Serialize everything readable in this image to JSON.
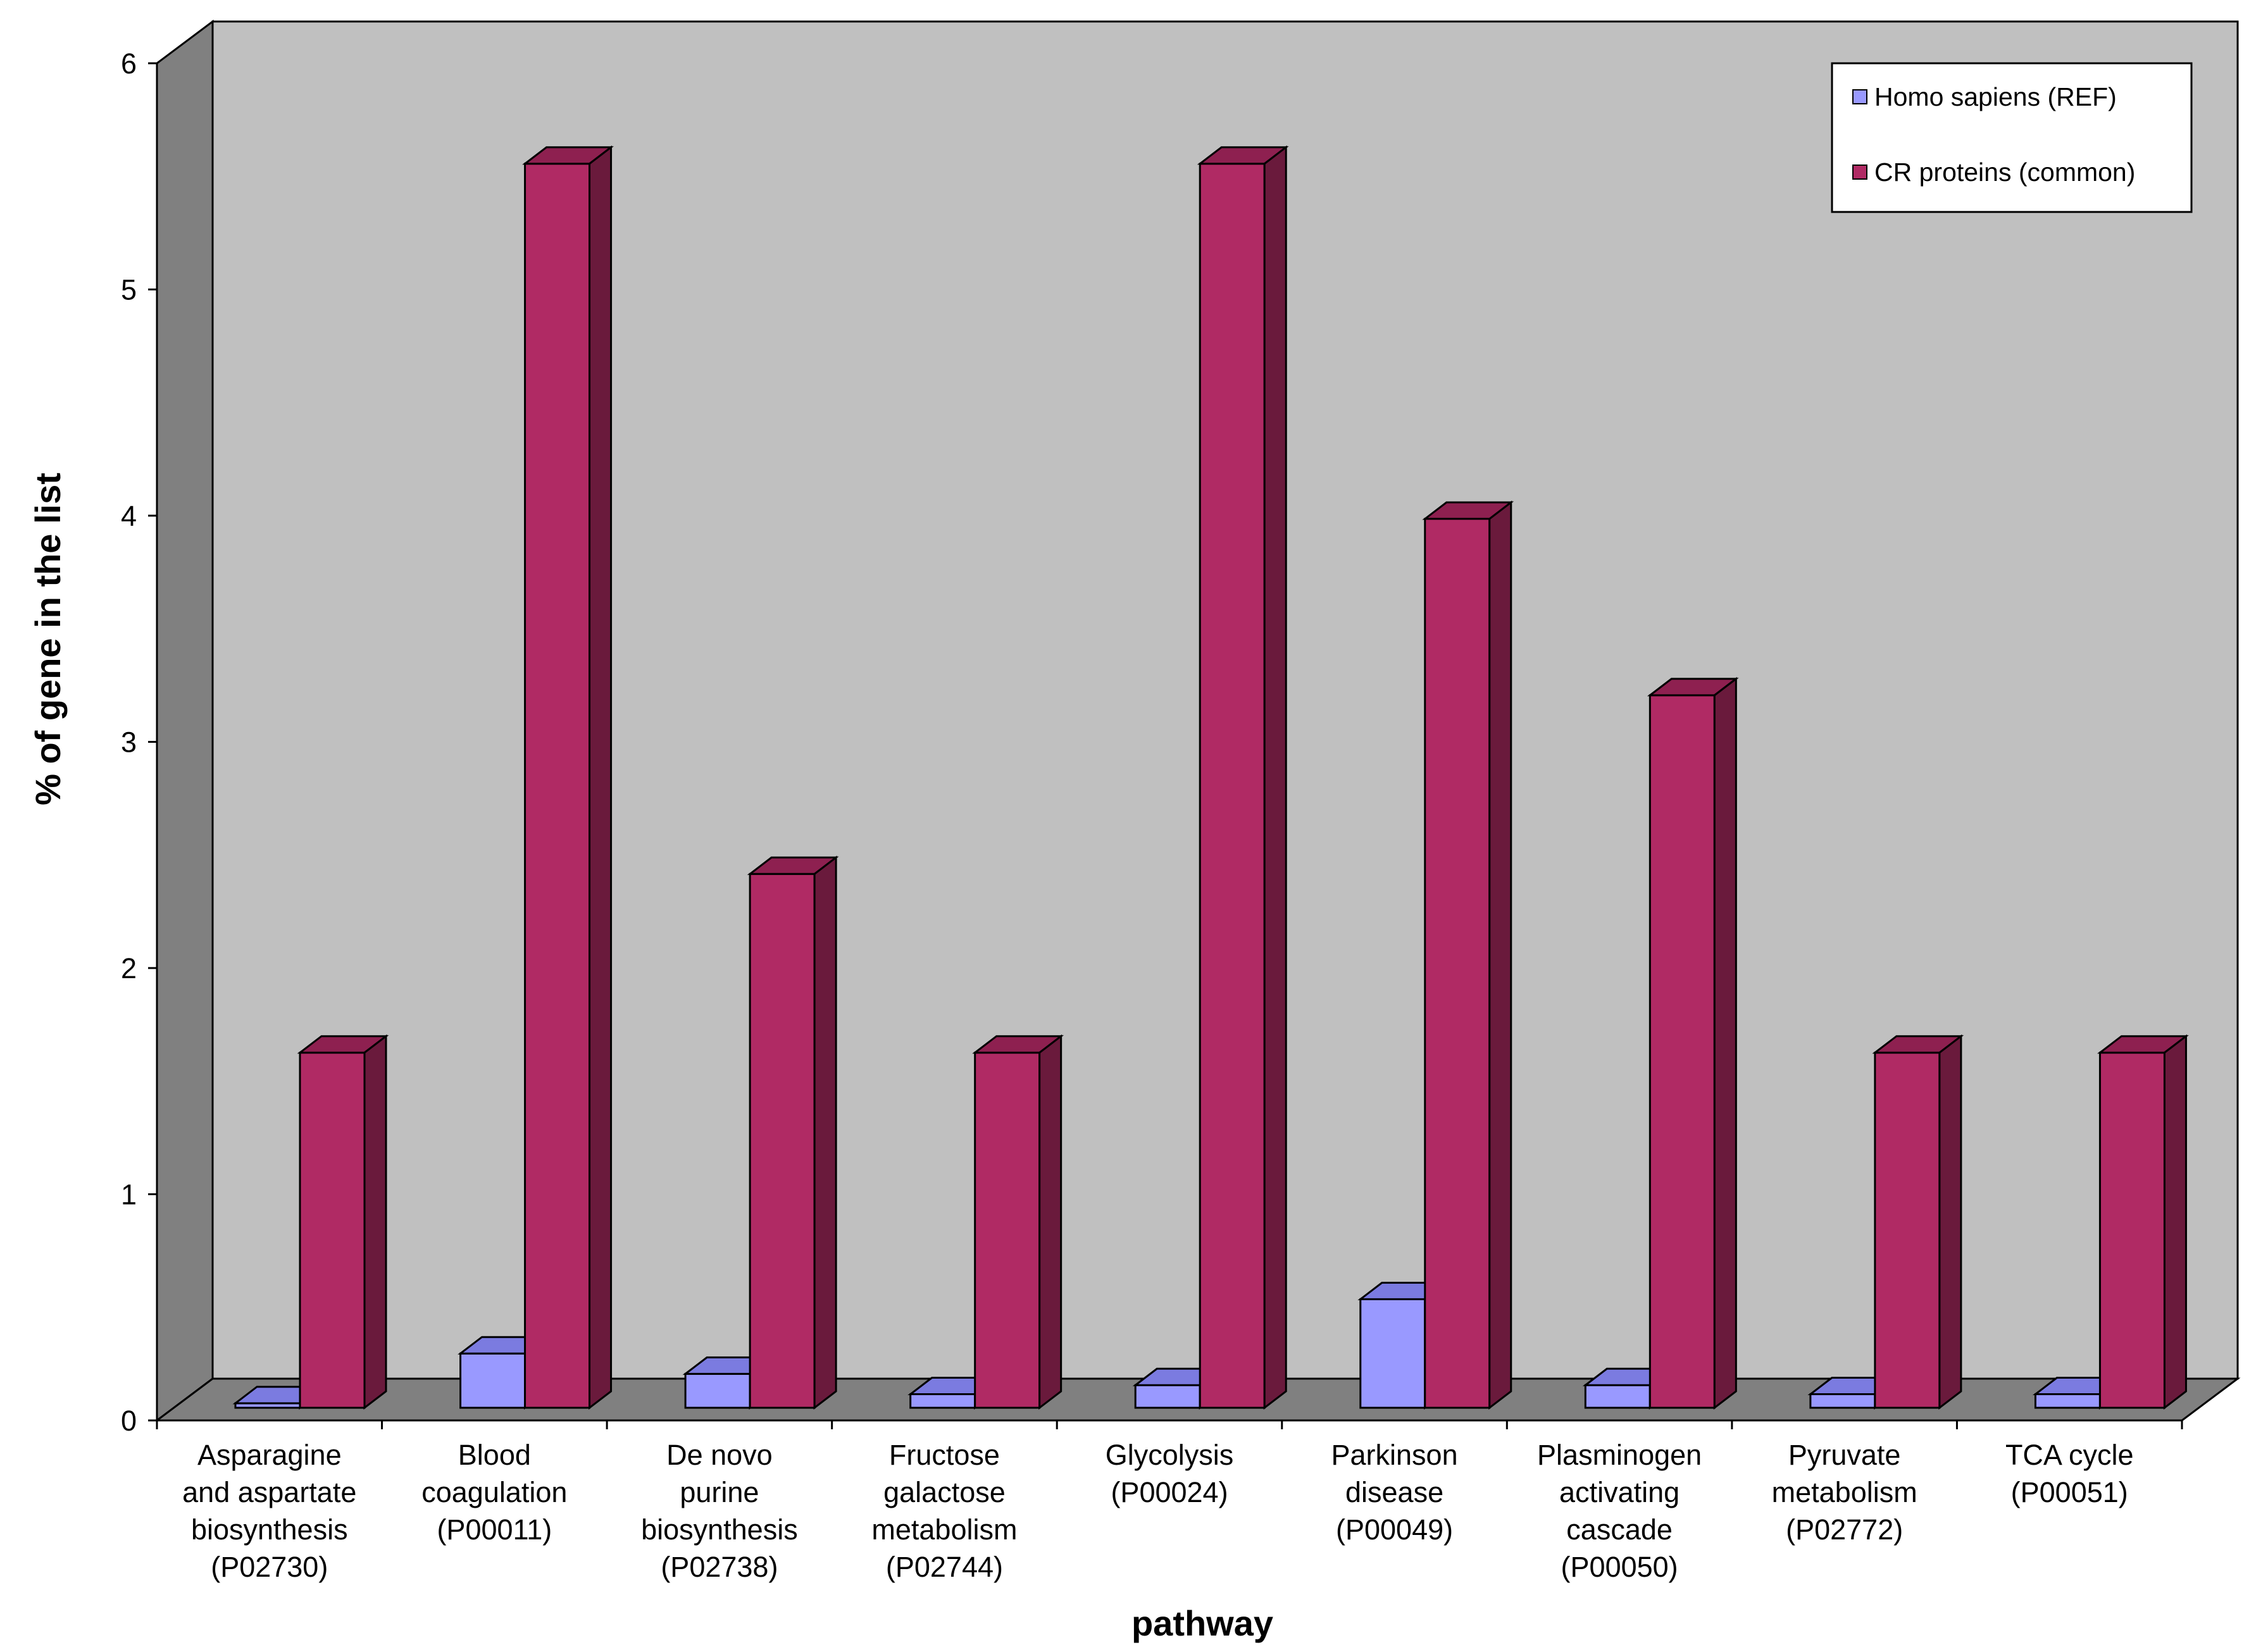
{
  "chart_data": {
    "type": "bar",
    "title": "",
    "xlabel": "pathway",
    "ylabel": "% of gene in the list",
    "ylim": [
      0,
      6
    ],
    "yticks": [
      0,
      1,
      2,
      3,
      4,
      5,
      6
    ],
    "grid": false,
    "legend_position": "top-right",
    "categories": [
      [
        "Asparagine",
        "and aspartate",
        "biosynthesis",
        "(P02730)"
      ],
      [
        "Blood",
        "coagulation",
        "(P00011)"
      ],
      [
        "De novo",
        "purine",
        "biosynthesis",
        "(P02738)"
      ],
      [
        "Fructose",
        "galactose",
        "metabolism",
        "(P02744)"
      ],
      [
        "Glycolysis",
        "(P00024)"
      ],
      [
        "Parkinson",
        "disease",
        "(P00049)"
      ],
      [
        "Plasminogen",
        "activating",
        "cascade",
        "(P00050)"
      ],
      [
        "Pyruvate",
        "metabolism",
        "(P02772)"
      ],
      [
        "TCA cycle",
        "(P00051)"
      ]
    ],
    "series": [
      {
        "name": "Homo sapiens (REF)",
        "color": "#9999ff",
        "top_color": "#7b7be0",
        "side_color": "#5c5cb0",
        "values": [
          0.02,
          0.24,
          0.15,
          0.06,
          0.1,
          0.48,
          0.1,
          0.06,
          0.06
        ]
      },
      {
        "name": "CR proteins (common)",
        "color": "#b02a64",
        "top_color": "#8e2050",
        "side_color": "#6a1a3c",
        "values": [
          1.57,
          5.5,
          2.36,
          1.57,
          5.5,
          3.93,
          3.15,
          1.57,
          1.57
        ]
      }
    ],
    "colors": {
      "wall": "#c0c0c0",
      "side_wall": "#808080",
      "floor": "#808080"
    }
  }
}
